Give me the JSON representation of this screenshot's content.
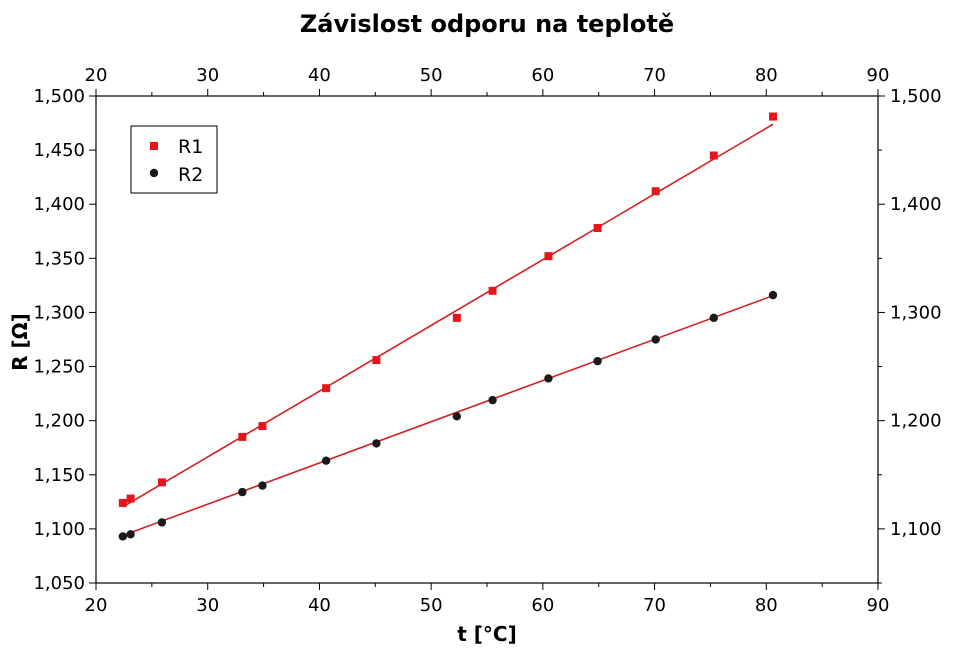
{
  "chart_data": {
    "type": "scatter",
    "title": "Závislost odporu na teplotě",
    "xlabel": "t [°C]",
    "ylabel": "R [Ω]",
    "xlim": [
      20,
      90
    ],
    "ylim": [
      1.05,
      1.5
    ],
    "right_ylim": [
      1.05,
      1.5
    ],
    "x_ticks": [
      "20",
      "30",
      "40",
      "50",
      "60",
      "70",
      "80",
      "90"
    ],
    "y_ticks_left": [
      "1,050",
      "1,100",
      "1,150",
      "1,200",
      "1,250",
      "1,300",
      "1,350",
      "1,400",
      "1,450",
      "1,500"
    ],
    "y_ticks_right": [
      "1,100",
      "1,200",
      "1,300",
      "1,400",
      "1,500"
    ],
    "legend_position": "top-left",
    "grid": false,
    "series": [
      {
        "name": "R1",
        "marker": "square",
        "color": "#e8141b",
        "fit_line_color": "#d42020",
        "x": [
          22.4,
          23.1,
          25.9,
          33.1,
          34.9,
          40.6,
          45.1,
          52.3,
          55.5,
          60.5,
          64.9,
          70.1,
          75.3,
          80.6
        ],
        "y": [
          1.124,
          1.128,
          1.143,
          1.185,
          1.195,
          1.23,
          1.256,
          1.295,
          1.32,
          1.352,
          1.378,
          1.412,
          1.445,
          1.481
        ],
        "fit": {
          "slope": 0.006075,
          "intercept": 0.98425
        }
      },
      {
        "name": "R2",
        "marker": "circle",
        "color": "#1a1a1a",
        "fit_line_color": "#d42020",
        "x": [
          22.4,
          23.1,
          25.9,
          33.1,
          34.9,
          40.6,
          45.1,
          52.3,
          55.5,
          60.5,
          64.9,
          70.1,
          75.3,
          80.6
        ],
        "y": [
          1.093,
          1.095,
          1.106,
          1.134,
          1.14,
          1.163,
          1.179,
          1.204,
          1.219,
          1.239,
          1.255,
          1.275,
          1.295,
          1.316
        ],
        "fit": {
          "slope": 0.003808,
          "intercept": 1.0086
        }
      }
    ]
  }
}
